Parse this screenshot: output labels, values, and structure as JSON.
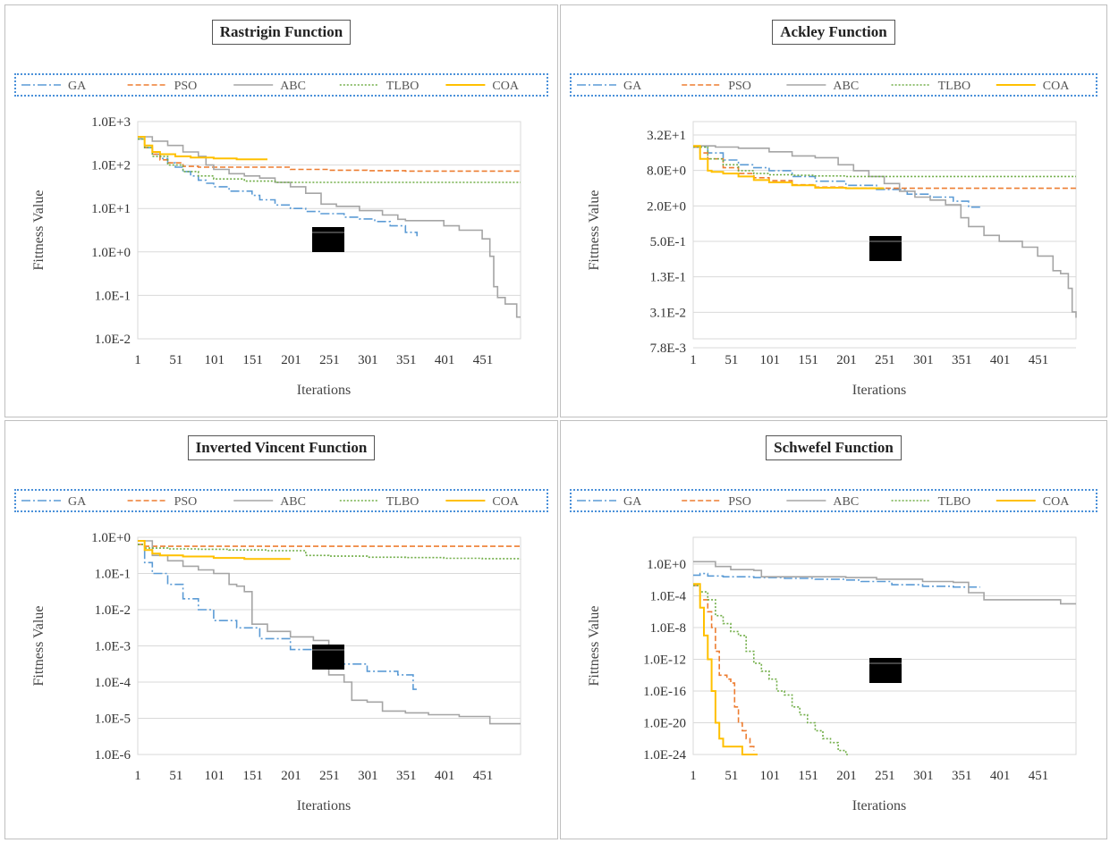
{
  "colors": {
    "GA": "#5b9bd5",
    "PSO": "#ed7d31",
    "ABC": "#a5a5a5",
    "TLBO": "#70ad47",
    "COA": "#ffc000"
  },
  "legend": [
    "GA",
    "PSO",
    "ABC",
    "TLBO",
    "COA"
  ],
  "chart_data": [
    {
      "type": "line",
      "title": "Rastrigin Function",
      "xlabel": "Iterations",
      "ylabel": "Fittness Value",
      "yscale": "log",
      "ylim_log": [
        -2,
        3
      ],
      "ytick_labels": [
        "1.0E+3",
        "1.0E+2",
        "1.0E+1",
        "1.0E+0",
        "1.0E-1",
        "1.0E-2"
      ],
      "xtick_labels": [
        "1",
        "51",
        "101",
        "151",
        "201",
        "251",
        "301",
        "351",
        "401",
        "451"
      ],
      "xlim": [
        1,
        500
      ],
      "series": [
        {
          "name": "GA",
          "x": [
            1,
            10,
            20,
            30,
            40,
            50,
            60,
            70,
            80,
            90,
            100,
            120,
            150,
            160,
            180,
            200,
            220,
            240,
            270,
            290,
            310,
            330,
            350,
            365
          ],
          "y": [
            2.6,
            2.4,
            2.25,
            2.15,
            2.05,
            1.95,
            1.85,
            1.75,
            1.65,
            1.58,
            1.5,
            1.4,
            1.3,
            1.2,
            1.08,
            1.0,
            0.93,
            0.88,
            0.8,
            0.76,
            0.7,
            0.6,
            0.45,
            0.36
          ]
        },
        {
          "name": "PSO",
          "x": [
            1,
            10,
            20,
            30,
            40,
            60,
            80,
            100,
            150,
            200,
            250,
            300,
            350,
            400,
            450,
            500
          ],
          "y": [
            2.65,
            2.4,
            2.25,
            2.12,
            2.05,
            1.97,
            1.95,
            1.95,
            1.95,
            1.9,
            1.88,
            1.87,
            1.86,
            1.86,
            1.86,
            1.86
          ]
        },
        {
          "name": "ABC",
          "x": [
            1,
            5,
            20,
            40,
            60,
            80,
            90,
            100,
            120,
            140,
            160,
            180,
            200,
            220,
            240,
            260,
            290,
            320,
            340,
            350,
            380,
            400,
            420,
            450,
            460,
            465,
            470,
            480,
            490,
            495,
            500
          ],
          "y": [
            2.6,
            2.65,
            2.55,
            2.45,
            2.3,
            2.2,
            2.0,
            1.9,
            1.8,
            1.75,
            1.7,
            1.6,
            1.5,
            1.35,
            1.1,
            1.05,
            0.95,
            0.85,
            0.75,
            0.72,
            0.72,
            0.6,
            0.5,
            0.3,
            -0.1,
            -0.8,
            -1.05,
            -1.2,
            -1.2,
            -1.5,
            -1.5
          ]
        },
        {
          "name": "TLBO",
          "x": [
            1,
            10,
            20,
            40,
            60,
            80,
            100,
            140,
            180,
            200,
            250,
            300,
            350,
            400,
            450,
            500
          ],
          "y": [
            2.6,
            2.4,
            2.2,
            2.0,
            1.85,
            1.75,
            1.68,
            1.63,
            1.6,
            1.6,
            1.6,
            1.6,
            1.6,
            1.6,
            1.6,
            1.6
          ]
        },
        {
          "name": "COA",
          "x": [
            1,
            10,
            20,
            30,
            50,
            70,
            100,
            130,
            150,
            170
          ],
          "y": [
            2.65,
            2.45,
            2.3,
            2.25,
            2.2,
            2.17,
            2.15,
            2.13,
            2.13,
            2.13
          ]
        }
      ]
    },
    {
      "type": "line",
      "title": "Ackley Function",
      "xlabel": "Iterations",
      "ylabel": "Fittness Value",
      "yscale": "log",
      "ylim_log": [
        -2.15,
        1.71
      ],
      "ytick_labels": [
        "3.2E+1",
        "8.0E+0",
        "2.0E+0",
        "5.0E-1",
        "1.3E-1",
        "3.1E-2",
        "7.8E-3"
      ],
      "xtick_labels": [
        "1",
        "51",
        "101",
        "151",
        "201",
        "251",
        "301",
        "351",
        "401",
        "451"
      ],
      "xlim": [
        1,
        500
      ],
      "series": [
        {
          "name": "GA",
          "x": [
            1,
            20,
            40,
            60,
            80,
            100,
            130,
            160,
            200,
            240,
            280,
            310,
            340,
            360,
            375
          ],
          "y": [
            1.3,
            1.2,
            1.08,
            1.0,
            0.95,
            0.9,
            0.8,
            0.72,
            0.65,
            0.58,
            0.5,
            0.45,
            0.38,
            0.28,
            0.25
          ]
        },
        {
          "name": "PSO",
          "x": [
            1,
            10,
            20,
            40,
            60,
            80,
            100,
            130,
            160,
            200,
            250,
            300,
            350,
            400,
            450,
            500
          ],
          "y": [
            1.3,
            1.2,
            1.1,
            0.95,
            0.85,
            0.78,
            0.73,
            0.66,
            0.62,
            0.6,
            0.6,
            0.6,
            0.6,
            0.6,
            0.6,
            0.6
          ]
        },
        {
          "name": "ABC",
          "x": [
            1,
            30,
            60,
            100,
            130,
            160,
            190,
            210,
            230,
            250,
            270,
            290,
            310,
            330,
            350,
            360,
            380,
            400,
            430,
            450,
            470,
            480,
            490,
            495,
            500
          ],
          "y": [
            1.32,
            1.3,
            1.28,
            1.22,
            1.15,
            1.12,
            1.0,
            0.9,
            0.8,
            0.68,
            0.55,
            0.45,
            0.4,
            0.32,
            0.1,
            -0.05,
            -0.2,
            -0.3,
            -0.4,
            -0.55,
            -0.8,
            -0.85,
            -1.1,
            -1.5,
            -1.6
          ]
        },
        {
          "name": "TLBO",
          "x": [
            1,
            20,
            40,
            60,
            80,
            100,
            130,
            160,
            200,
            250,
            300,
            350,
            400,
            450,
            500
          ],
          "y": [
            1.3,
            1.1,
            1.0,
            0.9,
            0.85,
            0.83,
            0.82,
            0.81,
            0.8,
            0.8,
            0.8,
            0.8,
            0.8,
            0.8,
            0.8
          ]
        },
        {
          "name": "COA",
          "x": [
            1,
            10,
            20,
            25,
            40,
            60,
            80,
            100,
            130,
            160,
            200,
            250
          ],
          "y": [
            1.32,
            1.1,
            0.9,
            0.88,
            0.85,
            0.8,
            0.74,
            0.7,
            0.65,
            0.61,
            0.6,
            0.6
          ]
        }
      ]
    },
    {
      "type": "line",
      "title": "Inverted Vincent Function",
      "xlabel": "Iterations",
      "ylabel": "Fittness Value",
      "yscale": "log",
      "ylim_log": [
        -6,
        0
      ],
      "ytick_labels": [
        "1.0E+0",
        "1.0E-1",
        "1.0E-2",
        "1.0E-3",
        "1.0E-4",
        "1.0E-5",
        "1.0E-6"
      ],
      "xtick_labels": [
        "1",
        "51",
        "101",
        "151",
        "201",
        "251",
        "301",
        "351",
        "401",
        "451"
      ],
      "xlim": [
        1,
        500
      ],
      "series": [
        {
          "name": "GA",
          "x": [
            1,
            10,
            20,
            40,
            60,
            80,
            100,
            130,
            160,
            200,
            230,
            260,
            300,
            340,
            360,
            365
          ],
          "y": [
            -0.1,
            -0.7,
            -1.0,
            -1.3,
            -1.7,
            -2.0,
            -2.3,
            -2.5,
            -2.8,
            -3.1,
            -3.2,
            -3.5,
            -3.7,
            -3.8,
            -4.2,
            -4.25
          ]
        },
        {
          "name": "PSO",
          "x": [
            1,
            10,
            500
          ],
          "y": [
            -0.2,
            -0.25,
            -0.25
          ]
        },
        {
          "name": "ABC",
          "x": [
            1,
            20,
            40,
            60,
            80,
            100,
            120,
            130,
            140,
            150,
            170,
            200,
            230,
            250,
            270,
            280,
            300,
            320,
            350,
            380,
            420,
            450,
            460,
            500
          ],
          "y": [
            -0.1,
            -0.5,
            -0.65,
            -0.8,
            -0.9,
            -1.0,
            -1.3,
            -1.35,
            -1.5,
            -2.4,
            -2.6,
            -2.75,
            -2.85,
            -3.8,
            -4.0,
            -4.5,
            -4.55,
            -4.8,
            -4.85,
            -4.9,
            -4.95,
            -4.95,
            -5.15,
            -5.15
          ]
        },
        {
          "name": "TLBO",
          "x": [
            1,
            10,
            40,
            80,
            120,
            170,
            220,
            250,
            300,
            350,
            400,
            450,
            500
          ],
          "y": [
            -0.2,
            -0.3,
            -0.32,
            -0.33,
            -0.35,
            -0.37,
            -0.5,
            -0.52,
            -0.55,
            -0.56,
            -0.58,
            -0.59,
            -0.6
          ]
        },
        {
          "name": "COA",
          "x": [
            1,
            10,
            20,
            30,
            60,
            100,
            140,
            200
          ],
          "y": [
            -0.1,
            -0.35,
            -0.45,
            -0.5,
            -0.53,
            -0.57,
            -0.6,
            -0.6
          ]
        }
      ]
    },
    {
      "type": "line",
      "title": "Schwefel Function",
      "xlabel": "Iterations",
      "ylabel": "Fittness Value",
      "yscale": "log",
      "ylim_log": [
        -24,
        4.4
      ],
      "ytick_labels": [
        "1.0E+0",
        "1.0E-4",
        "1.0E-8",
        "1.0E-12",
        "1.0E-16",
        "1.0E-20",
        "1.0E-24"
      ],
      "xtick_labels": [
        "1",
        "51",
        "101",
        "151",
        "201",
        "251",
        "301",
        "351",
        "401",
        "451"
      ],
      "xlim": [
        1,
        500
      ],
      "series": [
        {
          "name": "GA",
          "x": [
            1,
            10,
            20,
            40,
            80,
            120,
            160,
            200,
            220,
            260,
            300,
            340,
            360,
            375
          ],
          "y": [
            -1.4,
            -1.2,
            -1.5,
            -1.6,
            -1.7,
            -1.8,
            -1.9,
            -2.0,
            -2.2,
            -2.6,
            -2.8,
            -2.9,
            -2.9,
            -2.9
          ]
        },
        {
          "name": "PSO",
          "x": [
            1,
            10,
            20,
            25,
            30,
            35,
            40,
            45,
            50,
            55,
            60,
            65,
            70,
            75,
            80
          ],
          "y": [
            -2.7,
            -4.5,
            -6,
            -8,
            -11,
            -14,
            -14,
            -14.5,
            -15,
            -18,
            -20,
            -21,
            -22,
            -23,
            -23.5
          ]
        },
        {
          "name": "ABC",
          "x": [
            1,
            20,
            30,
            50,
            80,
            90,
            120,
            160,
            200,
            240,
            300,
            340,
            360,
            380,
            400,
            450,
            480,
            500
          ],
          "y": [
            0.3,
            0.3,
            -0.3,
            -0.7,
            -0.8,
            -1.6,
            -1.6,
            -1.6,
            -1.7,
            -1.9,
            -2.2,
            -2.3,
            -3.6,
            -4.5,
            -4.5,
            -4.5,
            -5.0,
            -5.0
          ]
        },
        {
          "name": "TLBO",
          "x": [
            1,
            10,
            20,
            30,
            40,
            50,
            60,
            70,
            80,
            90,
            100,
            110,
            120,
            130,
            140,
            150,
            160,
            170,
            180,
            190,
            200,
            205
          ],
          "y": [
            -2.7,
            -3.5,
            -4.5,
            -6.5,
            -7.5,
            -8.5,
            -9.0,
            -11,
            -12.5,
            -13.5,
            -14.5,
            -16,
            -16.5,
            -18,
            -19,
            -20,
            -21,
            -22,
            -22.5,
            -23.5,
            -24,
            -24
          ]
        },
        {
          "name": "COA",
          "x": [
            1,
            10,
            15,
            20,
            25,
            30,
            35,
            40,
            45,
            55,
            60,
            65,
            70,
            80,
            85
          ],
          "y": [
            -2.5,
            -5.5,
            -9,
            -12,
            -16,
            -20,
            -22,
            -23,
            -23,
            -23,
            -23,
            -24,
            -24,
            -24,
            -24
          ]
        }
      ]
    }
  ]
}
